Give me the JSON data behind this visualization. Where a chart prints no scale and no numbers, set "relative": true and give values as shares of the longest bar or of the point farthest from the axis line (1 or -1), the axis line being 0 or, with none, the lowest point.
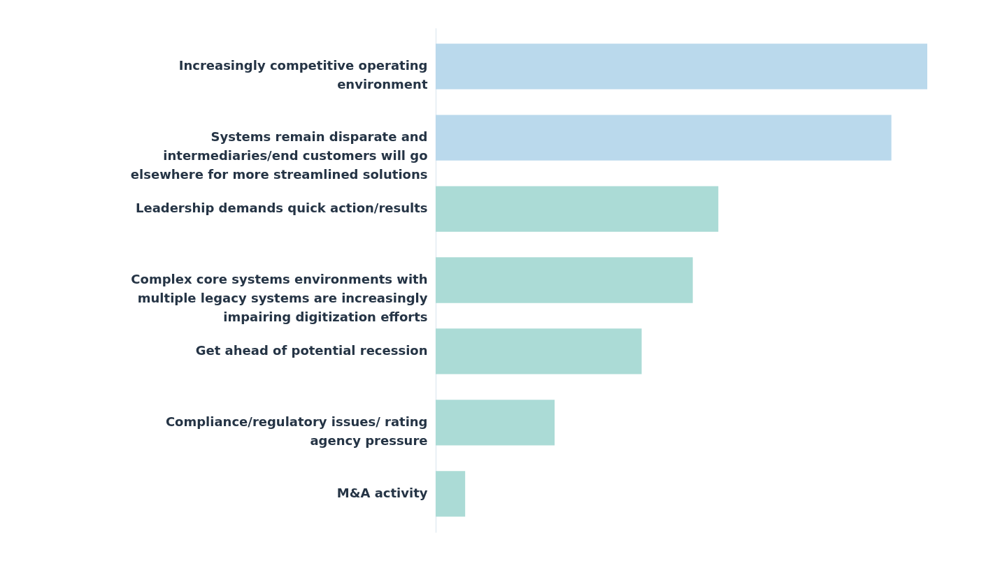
{
  "chart_data": {
    "type": "bar",
    "orientation": "horizontal",
    "relative": true,
    "categories": [
      "Increasingly competitive operating environment",
      "Systems remain disparate and intermediaries/end customers will go elsewhere for more streamlined solutions",
      "Leadership demands quick action/results",
      "Complex core systems environments with multiple legacy systems are increasingly impairing digitization efforts",
      "Get ahead of potential recession",
      "Compliance/regulatory issues/ rating agency pressure",
      "M&A activity"
    ],
    "values": [
      1,
      0.927,
      0.575,
      0.523,
      0.419,
      0.242,
      0.06
    ],
    "colors": [
      "#bad9ec",
      "#bad9ec",
      "#abdbd6",
      "#abdbd6",
      "#abdbd6",
      "#abdbd6",
      "#abdbd6"
    ]
  }
}
